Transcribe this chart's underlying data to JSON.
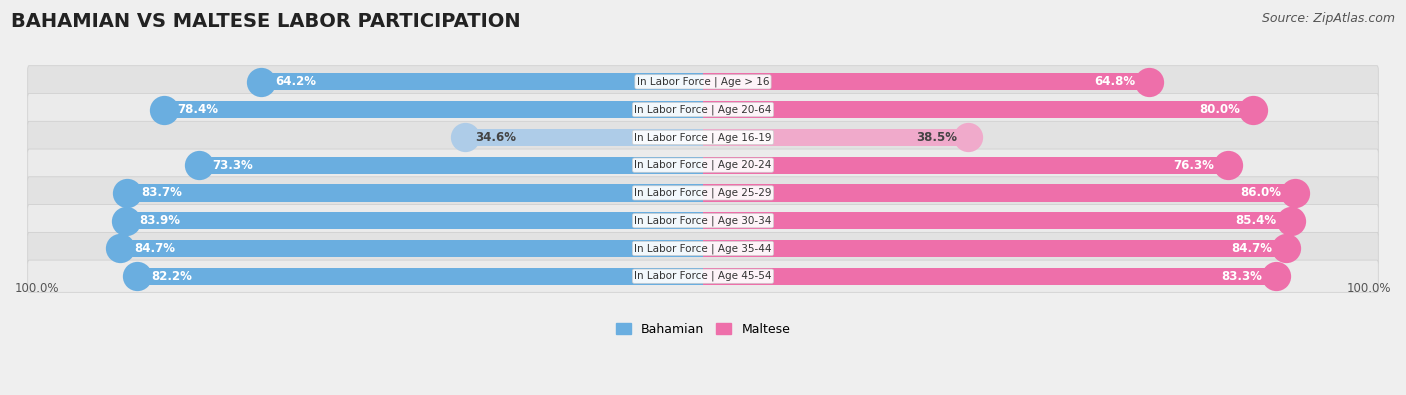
{
  "title": "BAHAMIAN VS MALTESE LABOR PARTICIPATION",
  "source": "Source: ZipAtlas.com",
  "categories": [
    "In Labor Force | Age > 16",
    "In Labor Force | Age 20-64",
    "In Labor Force | Age 16-19",
    "In Labor Force | Age 20-24",
    "In Labor Force | Age 25-29",
    "In Labor Force | Age 30-34",
    "In Labor Force | Age 35-44",
    "In Labor Force | Age 45-54"
  ],
  "bahamian": [
    64.2,
    78.4,
    34.6,
    73.3,
    83.7,
    83.9,
    84.7,
    82.2
  ],
  "maltese": [
    64.8,
    80.0,
    38.5,
    76.3,
    86.0,
    85.4,
    84.7,
    83.3
  ],
  "bahamian_color": "#6AAEE0",
  "maltese_color": "#EE6FAA",
  "bahamian_light_color": "#AECCE8",
  "maltese_light_color": "#F0AACB",
  "background_color": "#EFEFEF",
  "row_even_color": "#E2E2E2",
  "row_odd_color": "#EBEBEB",
  "bar_height": 0.62,
  "max_value": 100.0,
  "legend_bahamian": "Bahamian",
  "legend_maltese": "Maltese",
  "title_fontsize": 14,
  "source_fontsize": 9,
  "label_fontsize": 8.5,
  "category_fontsize": 7.5
}
